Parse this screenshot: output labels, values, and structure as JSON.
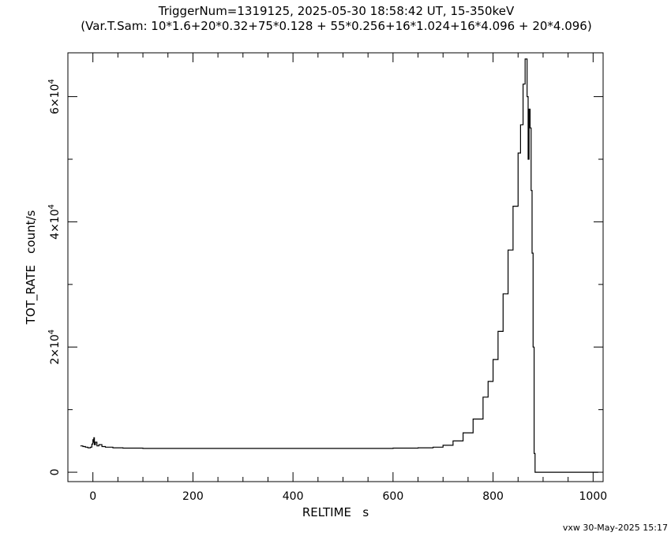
{
  "chart_data": {
    "type": "line",
    "title": "TriggerNum=1319125, 2025-05-30 18:58:42 UT, 15-350keV",
    "subtitle": "(Var.T.Sam: 10*1.6+20*0.32+75*0.128  +  55*0.256+16*1.024+16*4.096  +  20*4.096)",
    "xlabel": "RELTIME   s",
    "ylabel": "TOT_RATE   count/s",
    "xlim": [
      -50,
      1020
    ],
    "ylim": [
      -1500,
      67000
    ],
    "x_ticks": [
      0,
      200,
      400,
      600,
      800,
      1000
    ],
    "y_ticks": [
      0,
      20000,
      40000,
      60000
    ],
    "y_tick_labels": [
      {
        "value": 0,
        "mantissa": "0",
        "exp": ""
      },
      {
        "value": 20000,
        "mantissa": "2×10",
        "exp": "4"
      },
      {
        "value": 40000,
        "mantissa": "4×10",
        "exp": "4"
      },
      {
        "value": 60000,
        "mantissa": "6×10",
        "exp": "4"
      }
    ],
    "grid": false,
    "line_color": "#000000",
    "series": [
      {
        "x": [
          -25,
          -20,
          -15,
          -10,
          -5,
          -2,
          0,
          1,
          2,
          3,
          5,
          8,
          12,
          18,
          25,
          30,
          40,
          60,
          100,
          200,
          300,
          400,
          500,
          600,
          650,
          680,
          700,
          720,
          740,
          760,
          780,
          790,
          800,
          810,
          820,
          830,
          840,
          850,
          855,
          860,
          864,
          868,
          870,
          872,
          874,
          876,
          878,
          880,
          882,
          884,
          1010
        ],
        "y": [
          4200,
          4100,
          4000,
          3900,
          4000,
          4500,
          5200,
          4800,
          5500,
          4400,
          4800,
          4200,
          4400,
          4100,
          4000,
          4000,
          3900,
          3850,
          3800,
          3800,
          3800,
          3800,
          3800,
          3850,
          3900,
          4000,
          4300,
          5000,
          6300,
          8500,
          12000,
          14500,
          18000,
          22500,
          28500,
          35500,
          42500,
          51000,
          55500,
          62000,
          66000,
          60000,
          50000,
          58000,
          55000,
          45000,
          35000,
          20000,
          3000,
          0,
          0
        ]
      }
    ]
  },
  "footer": "vxw 30-May-2025 15:17"
}
